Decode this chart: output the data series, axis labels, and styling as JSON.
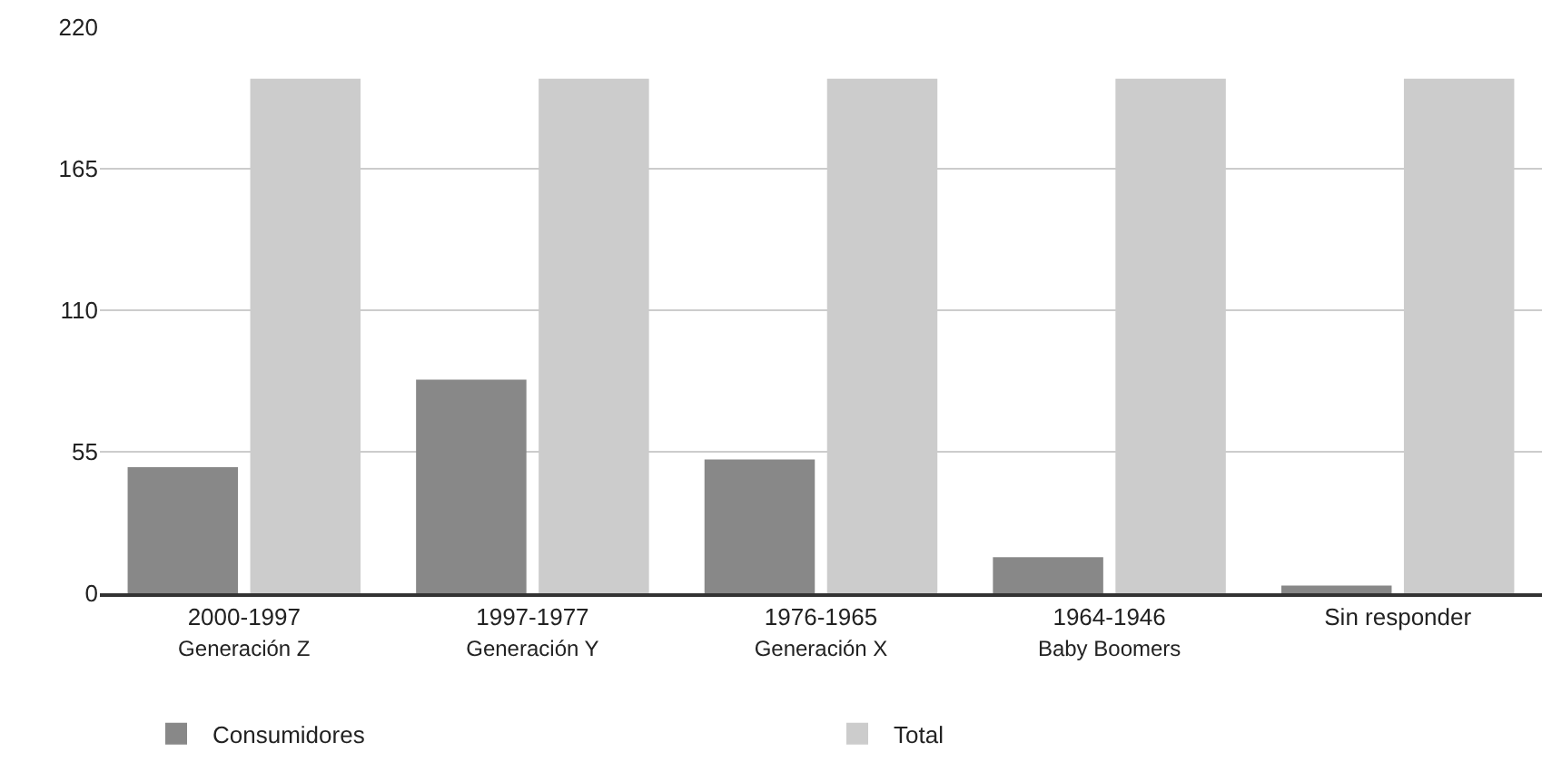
{
  "chart_data": {
    "type": "bar",
    "categories": [
      "2000-1997\nGeneración Z",
      "1997-1977\nGeneración Y",
      "1976-1965\nGeneración X",
      "1964-1946\nBaby Boomers",
      "Sin responder"
    ],
    "series": [
      {
        "name": "Consumidores",
        "color": "#888888",
        "values": [
          49,
          83,
          52,
          14,
          3
        ]
      },
      {
        "name": "Total",
        "color": "#cccccc",
        "values": [
          200,
          200,
          200,
          200,
          200
        ]
      }
    ],
    "ylim": [
      0,
      220
    ],
    "yticks": [
      0,
      55,
      110,
      165,
      220
    ],
    "grid": "y",
    "legend": "bottom"
  }
}
